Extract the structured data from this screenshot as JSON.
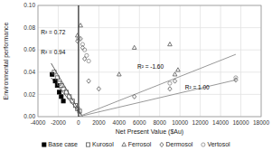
{
  "chart_data": {
    "type": "scatter",
    "xlabel": "Net Present Value ($Au)",
    "ylabel": "Environmental performance",
    "xlim": [
      -4000,
      18000
    ],
    "ylim": [
      0,
      0.1
    ],
    "xticks": [
      -4000,
      -2000,
      0,
      2000,
      4000,
      6000,
      8000,
      10000,
      12000,
      14000,
      16000,
      18000
    ],
    "yticks": [
      {
        "value": 0.0,
        "label": "0.00"
      },
      {
        "value": 0.02,
        "label": "0.02"
      },
      {
        "value": 0.04,
        "label": "0.04"
      },
      {
        "value": 0.06,
        "label": "0.06"
      },
      {
        "value": 0.08,
        "label": "0.08"
      },
      {
        "value": 0.1,
        "label": "0.10"
      }
    ],
    "grid": true,
    "legend": "bottom",
    "series": [
      {
        "name": "Base case",
        "type": "scatter",
        "marker": "filled-square",
        "color": "#000000",
        "x": [
          -2600,
          -2300,
          -2100,
          -1900,
          -1700,
          -1500
        ],
        "values": [
          0.038,
          0.032,
          0.028,
          0.022,
          0.018,
          0.014
        ]
      },
      {
        "name": "Kurosol",
        "type": "scatter",
        "marker": "square",
        "color": "#555555",
        "x": [
          -2400,
          -2100,
          -1900,
          -1700,
          -1500,
          -1200,
          -900,
          -600,
          -300,
          -100,
          100
        ],
        "values": [
          0.04,
          0.035,
          0.03,
          0.028,
          0.025,
          0.022,
          0.018,
          0.014,
          0.01,
          0.007,
          0.005
        ]
      },
      {
        "name": "Ferrosol",
        "type": "scatter",
        "marker": "triangle",
        "color": "#555555",
        "x": [
          -100,
          200,
          4000,
          5500,
          9000,
          9500,
          9800
        ],
        "values": [
          0.073,
          0.082,
          0.038,
          0.062,
          0.065,
          0.038,
          0.042
        ]
      },
      {
        "name": "Dermosol",
        "type": "scatter",
        "marker": "diamond",
        "color": "#555555",
        "x": [
          -100,
          200,
          400,
          600,
          1000,
          2000,
          5500,
          9000,
          9500,
          15500
        ],
        "values": [
          0.068,
          0.07,
          0.062,
          0.052,
          0.032,
          0.025,
          0.018,
          0.025,
          0.032,
          0.033
        ]
      },
      {
        "name": "Vertosol",
        "type": "scatter",
        "marker": "circle",
        "color": "#888888",
        "x": [
          0,
          400,
          600,
          800,
          1000,
          9000,
          15500
        ],
        "values": [
          0.07,
          0.065,
          0.06,
          0.055,
          0.05,
          0.03,
          0.035
        ]
      },
      {
        "type": "line",
        "color": "#666666",
        "x": [
          -2700,
          400
        ],
        "values": [
          0.048,
          0.0
        ]
      },
      {
        "type": "line",
        "color": "#666666",
        "x": [
          -2700,
          400
        ],
        "values": [
          0.035,
          0.0
        ]
      },
      {
        "type": "line",
        "color": "#999999",
        "x": [
          0,
          15500
        ],
        "values": [
          0.0,
          0.056
        ]
      },
      {
        "type": "line",
        "color": "#999999",
        "x": [
          0,
          15500
        ],
        "values": [
          0.0,
          0.033
        ]
      }
    ],
    "reference_lines": [
      {
        "x": 0,
        "color": "#000000"
      }
    ],
    "annotations": [
      {
        "text": "R² = 0.72",
        "x": -3700,
        "y": 0.074
      },
      {
        "text": "R² = 0.94",
        "x": -3700,
        "y": 0.056
      },
      {
        "text": "R² = -1.60",
        "x": 5800,
        "y": 0.043
      },
      {
        "text": "R² = 1.00",
        "x": 10500,
        "y": 0.024
      }
    ]
  }
}
